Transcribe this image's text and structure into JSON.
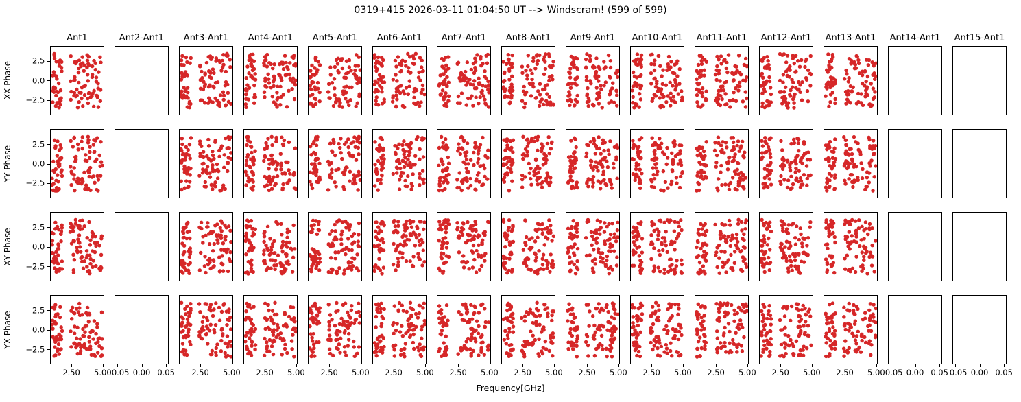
{
  "figure": {
    "title": "0319+415 2026-03-11 01:04:50 UT --> Windscram! (599 of 599)",
    "xlabel": "Frequency[GHz]",
    "background_color": "#ffffff",
    "axis_color": "#000000",
    "text_color": "#000000"
  },
  "chart_data": {
    "type": "scatter",
    "title": "0319+415 2026-03-11 01:04:50 UT --> Windscram! (599 of 599)",
    "xlabel": "Frequency[GHz]",
    "grid": {
      "rows": 4,
      "cols": 15
    },
    "row_labels": [
      "XX Phase",
      "YY Phase",
      "XY Phase",
      "YX Phase"
    ],
    "col_titles": [
      "Ant1",
      "Ant2-Ant1",
      "Ant3-Ant1",
      "Ant4-Ant1",
      "Ant5-Ant1",
      "Ant6-Ant1",
      "Ant7-Ant1",
      "Ant8-Ant1",
      "Ant9-Ant1",
      "Ant10-Ant1",
      "Ant11-Ant1",
      "Ant12-Ant1",
      "Ant13-Ant1",
      "Ant14-Ant1",
      "Ant15-Ant1"
    ],
    "empty_columns": [
      1,
      13,
      14
    ],
    "empty_column_titles": [
      "Ant2-Ant1",
      "Ant14-Ant1",
      "Ant15-Ant1"
    ],
    "marker_color": "#d62728",
    "marker_radius_px": 2.8,
    "filled_axes": {
      "xlim": [
        0.82,
        5.1
      ],
      "ylim": [
        -4.45,
        4.45
      ],
      "xticks": [
        {
          "v": 2.5,
          "label": "2.50"
        },
        {
          "v": 5.0,
          "label": "5.00"
        }
      ],
      "yticks": [
        {
          "v": 2.5,
          "label": "2.5"
        },
        {
          "v": 0.0,
          "label": "0.0"
        },
        {
          "v": -2.5,
          "label": "−2.5"
        }
      ]
    },
    "empty_axes": {
      "xlim": [
        -0.055,
        0.055
      ],
      "xticks": [
        {
          "v": -0.05,
          "label": "−0.05"
        },
        {
          "v": 0.0,
          "label": "0.00"
        },
        {
          "v": 0.05,
          "label": "0.05"
        }
      ]
    },
    "scatter_generation": {
      "description": "Each non-empty panel shows ~110 random phase samples (radians, roughly uniform -3.55..3.55) in two frequency bands; exact point positions are noise and are regenerated deterministically from the seed.",
      "seed": 20260311,
      "y_range": [
        -3.55,
        3.55
      ],
      "bands": [
        {
          "x_range": [
            0.92,
            1.75
          ],
          "points": 38
        },
        {
          "x_range": [
            2.42,
            5.05
          ],
          "points": 72
        }
      ]
    },
    "legend": null
  }
}
